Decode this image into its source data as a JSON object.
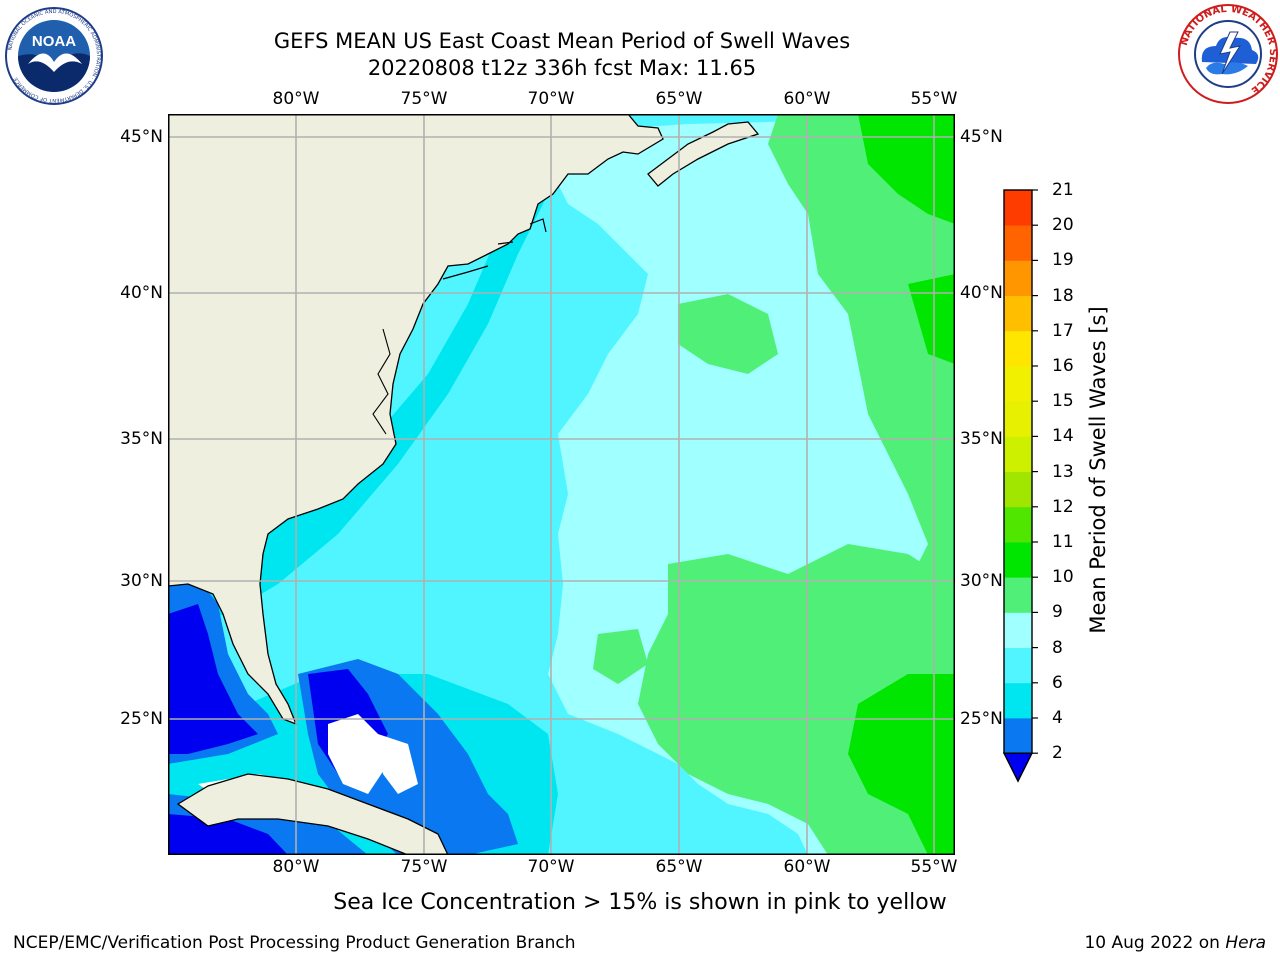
{
  "header": {
    "title_line1": "GEFS MEAN US East Coast Mean Period of Swell Waves",
    "title_line2": "20220808 t12z 336h fcst   Max: 11.65"
  },
  "logos": {
    "left": {
      "name": "noaa-logo",
      "text": "NOAA",
      "ring_text": "NATIONAL OCEANIC AND ATMOSPHERIC ADMINISTRATION · U.S. DEPARTMENT OF COMMERCE"
    },
    "right": {
      "name": "nws-logo",
      "ring_text": "NATIONAL WEATHER SERVICE"
    }
  },
  "map": {
    "lon_labels": [
      "80°W",
      "75°W",
      "70°W",
      "65°W",
      "60°W",
      "55°W"
    ],
    "lat_labels": [
      "45°N",
      "40°N",
      "35°N",
      "30°N",
      "25°N"
    ],
    "lon_range": [
      -85,
      -54.4
    ],
    "lat_range": [
      20.4,
      45.8
    ],
    "colors": {
      "land": "#efefdf",
      "grid": "#b0b0b0",
      "coast": "#000000"
    }
  },
  "colorbar": {
    "label": "Mean Period of Swell Waves [s]",
    "levels": [
      "2",
      "4",
      "6",
      "8",
      "9",
      "10",
      "11",
      "12",
      "13",
      "14",
      "15",
      "16",
      "17",
      "18",
      "19",
      "20",
      "21"
    ],
    "colors": [
      "#0a78f0",
      "#00e6f0",
      "#50f5ff",
      "#a0ffff",
      "#50f078",
      "#00e600",
      "#50e600",
      "#a0e600",
      "#cdf000",
      "#e6f000",
      "#f0f000",
      "#ffe600",
      "#ffbe00",
      "#ff9600",
      "#ff6400",
      "#ff3c00",
      "#ff0000"
    ],
    "under_color": "#0000f0"
  },
  "note": "Sea Ice Concentration > 15% is shown in pink to yellow",
  "footer": {
    "left": "NCEP/EMC/Verification Post Processing Product Generation Branch",
    "right_prefix": "10 Aug 2022 on ",
    "right_italic": "Hera"
  }
}
